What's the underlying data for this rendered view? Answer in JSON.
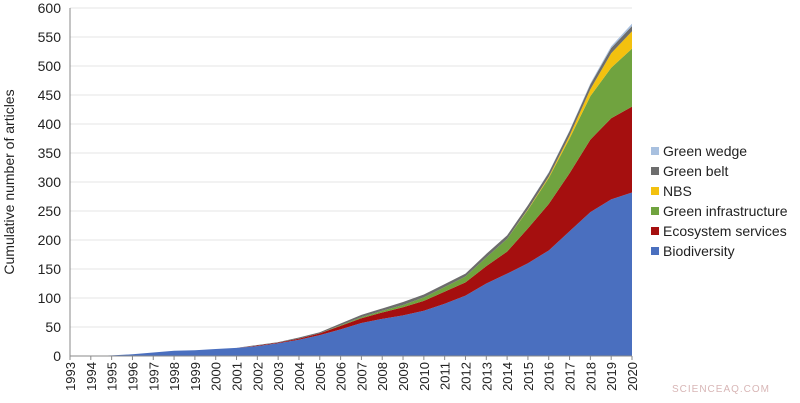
{
  "chart_data": {
    "type": "area",
    "stacked": true,
    "ylabel": "Cumulative number of articles",
    "xlabel": "",
    "ylim": [
      0,
      600
    ],
    "yticks": [
      0,
      50,
      100,
      150,
      200,
      250,
      300,
      350,
      400,
      450,
      500,
      550,
      600
    ],
    "grid": true,
    "legend_position": "right",
    "x": [
      "1993",
      "1994",
      "1995",
      "1996",
      "1997",
      "1998",
      "1999",
      "2000",
      "2001",
      "2002",
      "2003",
      "2004",
      "2005",
      "2006",
      "2007",
      "2008",
      "2009",
      "2010",
      "2011",
      "2012",
      "2013",
      "2014",
      "2015",
      "2016",
      "2017",
      "2018",
      "2019",
      "2020"
    ],
    "series": [
      {
        "name": "Biodiversity",
        "color": "#4a6fbf",
        "values": [
          0,
          0,
          1,
          3,
          6,
          9,
          10,
          12,
          14,
          17,
          22,
          28,
          36,
          46,
          57,
          64,
          70,
          78,
          90,
          104,
          125,
          142,
          160,
          182,
          215,
          248,
          270,
          282
        ]
      },
      {
        "name": "Ecosystem services",
        "color": "#a50f0f",
        "values": [
          0,
          0,
          0,
          0,
          0,
          0,
          0,
          0,
          0,
          1,
          1,
          2,
          3,
          6,
          8,
          11,
          14,
          17,
          21,
          23,
          30,
          38,
          60,
          80,
          100,
          125,
          140,
          148
        ]
      },
      {
        "name": "Green infrastructure",
        "color": "#70a33f",
        "values": [
          0,
          0,
          0,
          0,
          0,
          0,
          0,
          0,
          0,
          0,
          0,
          0,
          0,
          1,
          2,
          3,
          4,
          6,
          8,
          10,
          15,
          22,
          32,
          45,
          60,
          75,
          87,
          100
        ]
      },
      {
        "name": "NBS",
        "color": "#f3c10f",
        "values": [
          0,
          0,
          0,
          0,
          0,
          0,
          0,
          0,
          0,
          0,
          0,
          0,
          0,
          0,
          0,
          0,
          0,
          0,
          0,
          0,
          0,
          0,
          1,
          2,
          5,
          12,
          25,
          30
        ]
      },
      {
        "name": "Green belt",
        "color": "#6d6d6d",
        "values": [
          0,
          0,
          0,
          0,
          0,
          0,
          0,
          0,
          0,
          1,
          1,
          2,
          2,
          3,
          4,
          4,
          5,
          5,
          5,
          5,
          6,
          6,
          7,
          7,
          8,
          8,
          9,
          9
        ]
      },
      {
        "name": "Green wedge",
        "color": "#a8c0df",
        "values": [
          0,
          0,
          0,
          0,
          0,
          0,
          0,
          0,
          0,
          0,
          0,
          0,
          0,
          0,
          0,
          0,
          0,
          0,
          0,
          0,
          0,
          0,
          0,
          1,
          1,
          2,
          3,
          4
        ]
      }
    ],
    "legend_order": [
      "Green wedge",
      "Green belt",
      "NBS",
      "Green infrastructure",
      "Ecosystem services",
      "Biodiversity"
    ]
  },
  "watermark": "SCIENCEAQ.COM"
}
